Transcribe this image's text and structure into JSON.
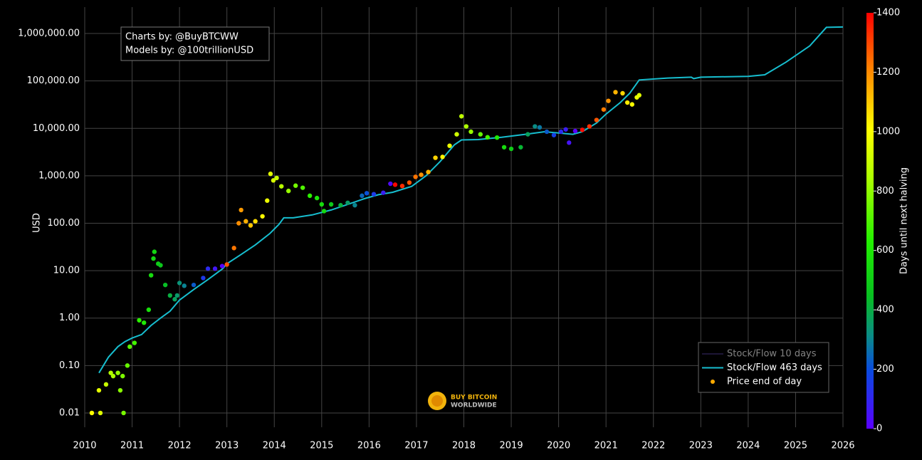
{
  "chart_data": {
    "type": "scatter",
    "annotation": [
      "Charts by: @BuyBTCWW",
      "Models by: @100trillionUSD"
    ],
    "y_label": "USD",
    "log_y": true,
    "grid": true,
    "legend_position": "bottom right",
    "logo": [
      "BUY BITCOIN",
      "WORLDWIDE"
    ],
    "xlim": [
      2010,
      2026
    ],
    "xticks": [
      2010,
      2011,
      2012,
      2013,
      2014,
      2015,
      2016,
      2017,
      2018,
      2019,
      2020,
      2021,
      2022,
      2023,
      2024,
      2025,
      2026
    ],
    "ylim": [
      0.005,
      3600000
    ],
    "yticks": [
      0.01,
      {
        "value": 0.1,
        "label": "0.10"
      },
      {
        "value": 1,
        "label": "1.00"
      },
      {
        "value": 10,
        "label": "10.00"
      },
      {
        "value": 100,
        "label": "100.00"
      },
      {
        "value": 1000,
        "label": "1,000.00"
      },
      {
        "value": 10000,
        "label": "10,000.00"
      },
      {
        "value": 100000,
        "label": "100,000.00"
      },
      {
        "value": 1000000,
        "label": "1,000,000.00"
      }
    ],
    "series": [
      {
        "name": "Stock/Flow 10 days",
        "color": "#3b2d6e",
        "visible": false
      },
      {
        "name": "Stock/Flow 463 days",
        "color": "#17becf",
        "type": "line",
        "x": [
          2010.3,
          2010.5,
          2010.7,
          2010.85,
          2011.0,
          2011.2,
          2011.4,
          2011.6,
          2011.8,
          2012.0,
          2012.3,
          2012.6,
          2012.91,
          2013.0,
          2013.3,
          2013.6,
          2013.9,
          2014.1,
          2014.2,
          2014.4,
          2014.8,
          2015.2,
          2015.6,
          2015.9,
          2016.2,
          2016.5,
          2016.9,
          2017.2,
          2017.5,
          2017.8,
          2017.95,
          2018.3,
          2018.8,
          2019.3,
          2019.7,
          2020.0,
          2020.3,
          2020.5,
          2020.8,
          2021.0,
          2021.3,
          2021.5,
          2021.7,
          2022.3,
          2022.8,
          2022.85,
          2023.0,
          2024.0,
          2024.35,
          2024.8,
          2025.3,
          2025.65,
          2026.0
        ],
        "values": [
          0.07,
          0.15,
          0.25,
          0.32,
          0.38,
          0.45,
          0.7,
          1.0,
          1.4,
          2.4,
          4,
          6.5,
          11,
          14,
          22,
          35,
          60,
          95,
          130,
          130,
          150,
          190,
          260,
          330,
          400,
          450,
          600,
          1000,
          2000,
          4500,
          5700,
          5800,
          6500,
          7500,
          8500,
          8000,
          7500,
          8500,
          13000,
          20000,
          35000,
          55000,
          105000,
          115000,
          120000,
          112000,
          120000,
          125000,
          135000,
          250000,
          550000,
          1350000,
          1370000
        ]
      },
      {
        "name": "Price end of day",
        "color": "#ffaa00",
        "type": "scatter",
        "x": [
          2010.15,
          2010.3,
          2010.33,
          2010.45,
          2010.55,
          2010.6,
          2010.7,
          2010.75,
          2010.8,
          2010.82,
          2010.9,
          2010.95,
          2011.05,
          2011.15,
          2011.25,
          2011.35,
          2011.4,
          2011.45,
          2011.47,
          2011.55,
          2011.6,
          2011.7,
          2011.8,
          2011.9,
          2011.95,
          2012.0,
          2012.1,
          2012.3,
          2012.5,
          2012.6,
          2012.75,
          2012.9,
          2013.0,
          2013.15,
          2013.25,
          2013.3,
          2013.4,
          2013.5,
          2013.6,
          2013.75,
          2013.85,
          2013.92,
          2013.98,
          2014.05,
          2014.15,
          2014.3,
          2014.45,
          2014.6,
          2014.75,
          2014.9,
          2015.0,
          2015.05,
          2015.2,
          2015.4,
          2015.55,
          2015.7,
          2015.85,
          2015.95,
          2016.1,
          2016.3,
          2016.45,
          2016.55,
          2016.7,
          2016.85,
          2016.98,
          2017.1,
          2017.25,
          2017.4,
          2017.55,
          2017.7,
          2017.85,
          2017.95,
          2018.05,
          2018.15,
          2018.35,
          2018.5,
          2018.7,
          2018.85,
          2019.0,
          2019.2,
          2019.35,
          2019.5,
          2019.6,
          2019.75,
          2019.9,
          2020.05,
          2020.15,
          2020.22,
          2020.35,
          2020.5,
          2020.65,
          2020.8,
          2020.95,
          2021.05,
          2021.2,
          2021.35,
          2021.45,
          2021.55,
          2021.65,
          2021.7
        ],
        "values": [
          0.01,
          0.03,
          0.01,
          0.04,
          0.07,
          0.06,
          0.07,
          0.03,
          0.06,
          0.01,
          0.1,
          0.25,
          0.3,
          0.9,
          0.8,
          1.5,
          8,
          18,
          25,
          14,
          13,
          5,
          3,
          2.5,
          3,
          5.5,
          4.8,
          5,
          7,
          11,
          11,
          12.5,
          13.5,
          30,
          100,
          190,
          110,
          90,
          110,
          140,
          300,
          1100,
          800,
          900,
          600,
          480,
          620,
          560,
          380,
          340,
          250,
          180,
          250,
          240,
          270,
          240,
          380,
          430,
          410,
          440,
          680,
          650,
          610,
          720,
          950,
          1050,
          1200,
          2400,
          2500,
          4300,
          7500,
          18000,
          11000,
          8500,
          7500,
          6500,
          6400,
          4000,
          3700,
          4000,
          7500,
          11000,
          10500,
          8500,
          7200,
          8500,
          9500,
          5000,
          8800,
          9300,
          11000,
          15000,
          25000,
          38000,
          58000,
          55000,
          35000,
          32000,
          45000,
          50000
        ],
        "color_values": [
          1007,
          953,
          942,
          898,
          861,
          843,
          807,
          788,
          770,
          763,
          734,
          715,
          679,
          642,
          606,
          569,
          551,
          533,
          526,
          496,
          478,
          442,
          405,
          369,
          350,
          332,
          296,
          223,
          150,
          113,
          58,
          4,
          1285,
          1230,
          1194,
          1175,
          1139,
          1102,
          1066,
          1011,
          975,
          949,
          927,
          902,
          865,
          810,
          756,
          701,
          646,
          591,
          555,
          537,
          482,
          409,
          354,
          299,
          245,
          208,
          153,
          80,
          26,
          1391,
          1336,
          1281,
          1234,
          1190,
          1135,
          1080,
          1026,
          971,
          916,
          880,
          843,
          807,
          734,
          679,
          606,
          551,
          496,
          423,
          369,
          314,
          277,
          223,
          168,
          113,
          77,
          51,
          4,
          1387,
          1332,
          1278,
          1223,
          1186,
          1132,
          1077,
          1040,
          1004,
          967,
          949
        ]
      }
    ],
    "colorbar": {
      "title": "Days until next halving",
      "range": [
        0,
        1400
      ],
      "ticks": [
        0,
        200,
        400,
        600,
        800,
        1000,
        1200,
        1400
      ],
      "colorscale": [
        [
          0,
          "#5a00ff"
        ],
        [
          0.14,
          "#0a4ae0"
        ],
        [
          0.22,
          "#0a8a8a"
        ],
        [
          0.32,
          "#08c020"
        ],
        [
          0.45,
          "#22f000"
        ],
        [
          0.6,
          "#aaff00"
        ],
        [
          0.72,
          "#ffff00"
        ],
        [
          0.86,
          "#ff8800"
        ],
        [
          1,
          "#ff0000"
        ]
      ]
    }
  }
}
